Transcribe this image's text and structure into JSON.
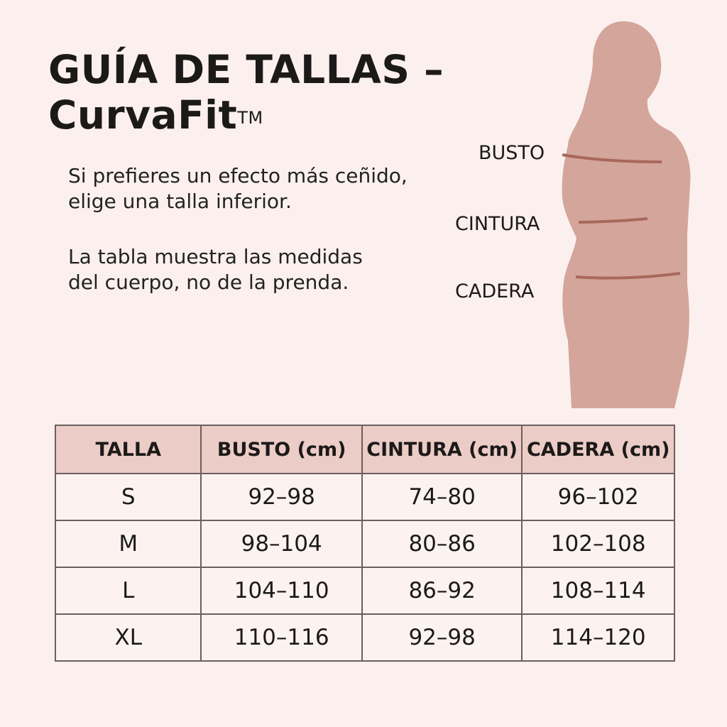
{
  "title": {
    "line1": "GUÍA DE TALLAS –",
    "line2": "CurvaFit",
    "trademark": "TM"
  },
  "notes": [
    {
      "line1": "Si prefieres un efecto más ceñido,",
      "line2": "elige una talla inferior."
    },
    {
      "line1": "La tabla muestra las medidas",
      "line2": "del cuerpo, no de la prenda."
    }
  ],
  "figure": {
    "labels": {
      "bust": "BUSTO",
      "waist": "CINTURA",
      "hip": "CADERA"
    },
    "silhouette_color": "#d4a59a",
    "line_color": "#a8685c"
  },
  "table": {
    "headers": [
      "TALLA",
      "BUSTO (cm)",
      "CINTURA (cm)",
      "CADERA (cm)"
    ],
    "rows": [
      [
        "S",
        "92–98",
        "74–80",
        "96–102"
      ],
      [
        "M",
        "98–104",
        "80–86",
        "102–108"
      ],
      [
        "L",
        "104–110",
        "86–92",
        "108–114"
      ],
      [
        "XL",
        "110–116",
        "92–98",
        "114–120"
      ]
    ],
    "header_color": "#ecccc6"
  }
}
